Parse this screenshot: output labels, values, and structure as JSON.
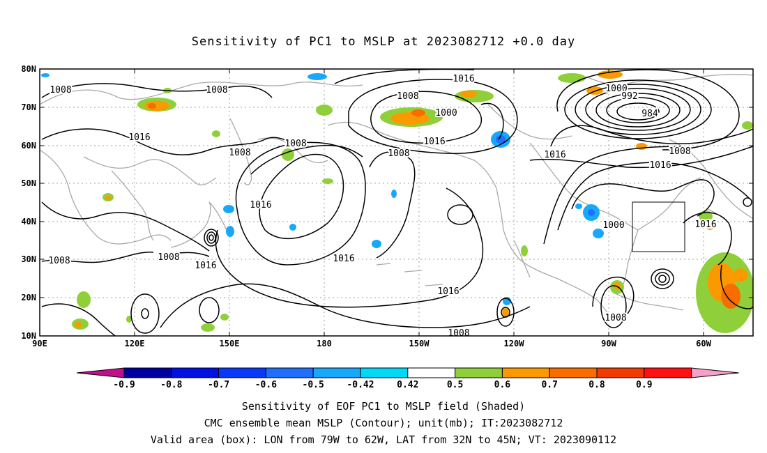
{
  "title": "Sensitivity of PC1 to MSLP at 2023082712 +0.0 day",
  "map": {
    "lat_labels": [
      "80N",
      "70N",
      "60N",
      "50N",
      "40N",
      "30N",
      "20N",
      "10N"
    ],
    "lon_labels": [
      "90E",
      "120E",
      "150E",
      "180",
      "150W",
      "120W",
      "90W",
      "60W"
    ],
    "contour_labels": [
      {
        "text": "1016"
      },
      {
        "text": "1008"
      },
      {
        "text": "1008"
      },
      {
        "text": "1000"
      },
      {
        "text": "992"
      },
      {
        "text": "984"
      },
      {
        "text": "1000"
      },
      {
        "text": "1008"
      },
      {
        "text": "1016"
      },
      {
        "text": "1008"
      },
      {
        "text": "1016"
      },
      {
        "text": "1008"
      },
      {
        "text": "1016"
      },
      {
        "text": "1008"
      },
      {
        "text": "1016"
      },
      {
        "text": "1008"
      },
      {
        "text": "1016"
      },
      {
        "text": "1000"
      },
      {
        "text": "1008"
      },
      {
        "text": "1008"
      },
      {
        "text": "1016"
      },
      {
        "text": "1016"
      },
      {
        "text": "1016"
      },
      {
        "text": "1016"
      },
      {
        "text": "1008"
      },
      {
        "text": "1008"
      }
    ],
    "valid_box": {
      "lon_from": "79W",
      "lon_to": "62W",
      "lat_from": "32N",
      "lat_to": "45N"
    }
  },
  "colorbar": {
    "labels": [
      "-0.9",
      "-0.8",
      "-0.7",
      "-0.6",
      "-0.5",
      "-0.42",
      "0.42",
      "0.5",
      "0.6",
      "0.7",
      "0.8",
      "0.9"
    ],
    "colors": [
      "#0000a0",
      "#0010e0",
      "#0838f8",
      "#1f6ffb",
      "#18a8fb",
      "#00d8f8",
      "#ffffff",
      "#8fd03a",
      "#fb9a00",
      "#f86c00",
      "#f03c00",
      "#ff1010"
    ],
    "left_arrow_color": "#c0108c",
    "right_arrow_color": "#f4a0c8"
  },
  "captions": [
    "Sensitivity of EOF PC1 to MSLP field (Shaded)",
    "CMC ensemble mean MSLP (Contour); unit(mb); IT:2023082712",
    "Valid area (box): LON from 79W to 62W, LAT from 32N to 45N; VT: 2023090112"
  ]
}
